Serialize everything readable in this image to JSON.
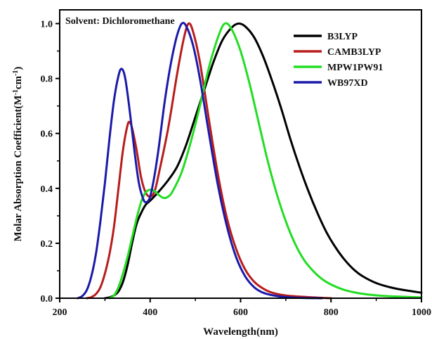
{
  "chart_data": {
    "type": "line",
    "title": "",
    "annotation": "Solvent: Dichloromethane",
    "xlabel": "Wavelength(nm)",
    "ylabel": {
      "main": "Molar Absorption Coefficient(M",
      "sup1": "-1",
      "mid": "cm",
      "sup2": "-1",
      "end": ")"
    },
    "xlim": [
      200,
      1000
    ],
    "ylim": [
      0.0,
      1.05
    ],
    "xticks": [
      200,
      400,
      600,
      800,
      1000
    ],
    "xtick_labels": [
      "200",
      "400",
      "600",
      "800",
      "1000"
    ],
    "yticks": [
      0.0,
      0.2,
      0.4,
      0.6,
      0.8,
      1.0
    ],
    "ytick_labels": [
      "0.0",
      "0.2",
      "0.4",
      "0.6",
      "0.8",
      "1.0"
    ],
    "grid": false,
    "legend_position": "top-right",
    "series": [
      {
        "name": "B3LYP",
        "color": "#000000",
        "points": [
          [
            300,
            0
          ],
          [
            310,
            0.003
          ],
          [
            320,
            0.01
          ],
          [
            330,
            0.025
          ],
          [
            340,
            0.06
          ],
          [
            350,
            0.12
          ],
          [
            360,
            0.2
          ],
          [
            370,
            0.27
          ],
          [
            380,
            0.31
          ],
          [
            390,
            0.34
          ],
          [
            400,
            0.355
          ],
          [
            420,
            0.39
          ],
          [
            440,
            0.43
          ],
          [
            460,
            0.48
          ],
          [
            480,
            0.56
          ],
          [
            500,
            0.66
          ],
          [
            520,
            0.76
          ],
          [
            540,
            0.86
          ],
          [
            560,
            0.94
          ],
          [
            580,
            0.985
          ],
          [
            595,
            1.0
          ],
          [
            610,
            0.99
          ],
          [
            630,
            0.95
          ],
          [
            650,
            0.88
          ],
          [
            670,
            0.79
          ],
          [
            690,
            0.69
          ],
          [
            710,
            0.58
          ],
          [
            730,
            0.48
          ],
          [
            750,
            0.39
          ],
          [
            770,
            0.31
          ],
          [
            790,
            0.24
          ],
          [
            810,
            0.185
          ],
          [
            830,
            0.14
          ],
          [
            850,
            0.105
          ],
          [
            870,
            0.08
          ],
          [
            900,
            0.055
          ],
          [
            930,
            0.04
          ],
          [
            960,
            0.03
          ],
          [
            1000,
            0.02
          ]
        ]
      },
      {
        "name": "CAMB3LYP",
        "color": "#b81c1c",
        "points": [
          [
            260,
            0
          ],
          [
            270,
            0.004
          ],
          [
            280,
            0.015
          ],
          [
            290,
            0.04
          ],
          [
            300,
            0.09
          ],
          [
            310,
            0.16
          ],
          [
            320,
            0.26
          ],
          [
            330,
            0.4
          ],
          [
            340,
            0.54
          ],
          [
            350,
            0.63
          ],
          [
            355,
            0.64
          ],
          [
            360,
            0.62
          ],
          [
            370,
            0.54
          ],
          [
            380,
            0.44
          ],
          [
            390,
            0.385
          ],
          [
            400,
            0.37
          ],
          [
            410,
            0.39
          ],
          [
            420,
            0.46
          ],
          [
            440,
            0.62
          ],
          [
            460,
            0.82
          ],
          [
            475,
            0.95
          ],
          [
            485,
            1.0
          ],
          [
            495,
            0.97
          ],
          [
            510,
            0.86
          ],
          [
            530,
            0.65
          ],
          [
            550,
            0.45
          ],
          [
            570,
            0.29
          ],
          [
            590,
            0.18
          ],
          [
            610,
            0.105
          ],
          [
            630,
            0.06
          ],
          [
            650,
            0.035
          ],
          [
            670,
            0.02
          ],
          [
            700,
            0.01
          ],
          [
            750,
            0.004
          ],
          [
            800,
            0.0
          ]
        ]
      },
      {
        "name": "MPW1PW91",
        "color": "#22dd22",
        "points": [
          [
            310,
            0
          ],
          [
            320,
            0.01
          ],
          [
            330,
            0.04
          ],
          [
            340,
            0.09
          ],
          [
            350,
            0.15
          ],
          [
            360,
            0.22
          ],
          [
            370,
            0.29
          ],
          [
            380,
            0.35
          ],
          [
            390,
            0.385
          ],
          [
            400,
            0.395
          ],
          [
            410,
            0.39
          ],
          [
            420,
            0.375
          ],
          [
            430,
            0.365
          ],
          [
            440,
            0.37
          ],
          [
            450,
            0.39
          ],
          [
            470,
            0.46
          ],
          [
            490,
            0.57
          ],
          [
            510,
            0.7
          ],
          [
            530,
            0.84
          ],
          [
            550,
            0.95
          ],
          [
            565,
            1.0
          ],
          [
            580,
            0.98
          ],
          [
            600,
            0.9
          ],
          [
            620,
            0.78
          ],
          [
            640,
            0.64
          ],
          [
            660,
            0.5
          ],
          [
            680,
            0.38
          ],
          [
            700,
            0.28
          ],
          [
            720,
            0.2
          ],
          [
            740,
            0.14
          ],
          [
            760,
            0.1
          ],
          [
            780,
            0.07
          ],
          [
            800,
            0.05
          ],
          [
            830,
            0.03
          ],
          [
            870,
            0.016
          ],
          [
            920,
            0.008
          ],
          [
            1000,
            0.003
          ]
        ]
      },
      {
        "name": "WB97XD",
        "color": "#1a1aaa",
        "points": [
          [
            240,
            0
          ],
          [
            250,
            0.008
          ],
          [
            260,
            0.03
          ],
          [
            270,
            0.08
          ],
          [
            280,
            0.16
          ],
          [
            290,
            0.28
          ],
          [
            300,
            0.42
          ],
          [
            310,
            0.58
          ],
          [
            320,
            0.72
          ],
          [
            330,
            0.81
          ],
          [
            337,
            0.835
          ],
          [
            345,
            0.8
          ],
          [
            355,
            0.68
          ],
          [
            365,
            0.54
          ],
          [
            375,
            0.42
          ],
          [
            385,
            0.36
          ],
          [
            392,
            0.35
          ],
          [
            400,
            0.37
          ],
          [
            410,
            0.45
          ],
          [
            420,
            0.56
          ],
          [
            430,
            0.69
          ],
          [
            440,
            0.8
          ],
          [
            450,
            0.89
          ],
          [
            460,
            0.96
          ],
          [
            470,
            1.0
          ],
          [
            480,
            0.99
          ],
          [
            495,
            0.92
          ],
          [
            510,
            0.8
          ],
          [
            530,
            0.6
          ],
          [
            550,
            0.41
          ],
          [
            570,
            0.26
          ],
          [
            590,
            0.15
          ],
          [
            610,
            0.08
          ],
          [
            630,
            0.04
          ],
          [
            650,
            0.02
          ],
          [
            680,
            0.008
          ],
          [
            720,
            0.002
          ],
          [
            780,
            0.0
          ]
        ]
      }
    ]
  }
}
